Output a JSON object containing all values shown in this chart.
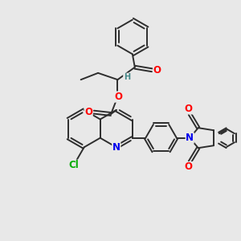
{
  "bg_color": "#e8e8e8",
  "bond_color": "#2d2d2d",
  "bond_width": 1.4,
  "dbo": 0.055,
  "atom_colors": {
    "O": "#ff0000",
    "N": "#0000ee",
    "Cl": "#00aa00",
    "H": "#448888",
    "C": "#2d2d2d"
  },
  "fs": 8.5,
  "fss": 7.0
}
